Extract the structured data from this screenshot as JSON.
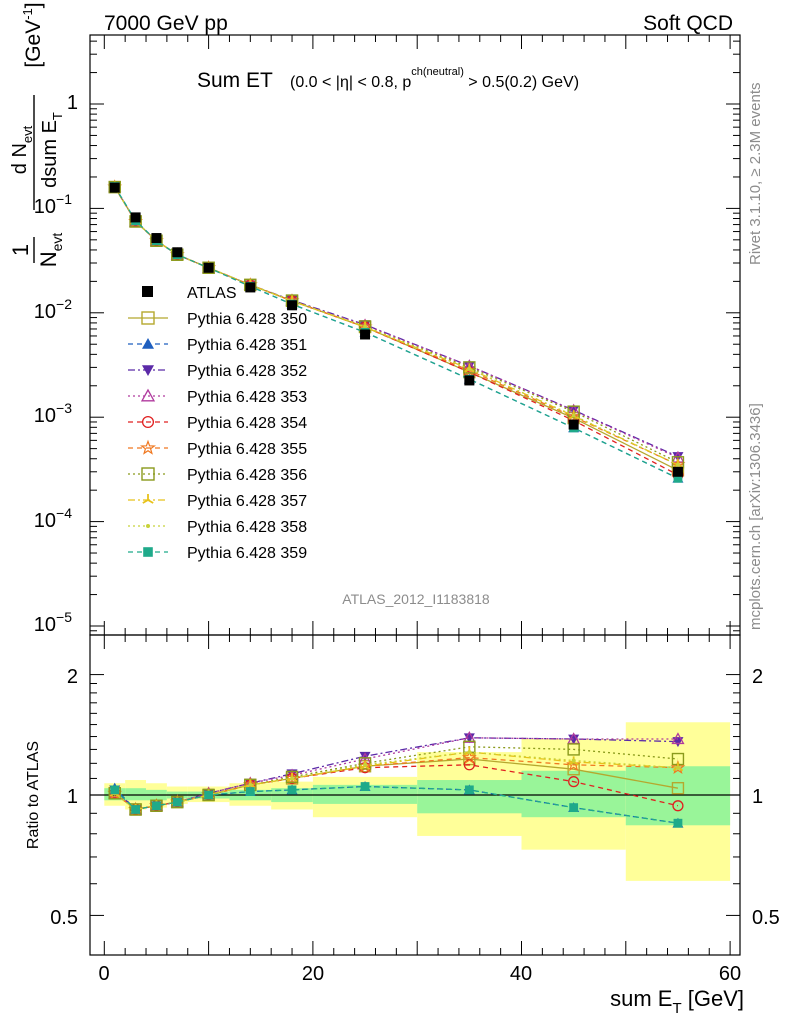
{
  "header": {
    "left": "7000 GeV pp",
    "right": "Soft QCD"
  },
  "side_text": {
    "rivet": "Rivet 3.1.10, ≥ 2.3M events",
    "mcplots": "mcplots.cern.ch [arXiv:1306.3436]"
  },
  "chart_data": [
    {
      "type": "line",
      "panel": "main",
      "title": "Sum ET",
      "subtitle": "(0.0 < |η| < 0.8, p^ch(neutral) > 0.5(0.2) GeV)",
      "ylabel": "1/N_evt dN_evt/dsum E_T [GeV^-1]",
      "watermark": "ATLAS_2012_I1183818",
      "yscale": "log",
      "ylim": [
        8e-06,
        4.5
      ],
      "xlim": [
        -1.5,
        61
      ],
      "ytick_labels": [
        "1",
        "10^-1",
        "10^-2",
        "10^-3",
        "10^-4",
        "10^-5"
      ],
      "legend_placement": "left-middle",
      "x": [
        1,
        3,
        5,
        7,
        10,
        14,
        18,
        25,
        35,
        45,
        55
      ],
      "data": {
        "name": "ATLAS",
        "values": [
          0.158,
          0.082,
          0.052,
          0.038,
          0.027,
          0.0175,
          0.0118,
          0.0062,
          0.00225,
          0.00085,
          0.0003
        ]
      },
      "series": [
        {
          "name": "Pythia 6.428 350",
          "color": "#b5a82e",
          "marker": "open-square",
          "line": "solid",
          "values": [
            0.16,
            0.075,
            0.049,
            0.036,
            0.027,
            0.0185,
            0.013,
            0.0073,
            0.0027,
            0.00098,
            0.00031
          ]
        },
        {
          "name": "Pythia 6.428 351",
          "color": "#1f5fbf",
          "marker": "triangle-up",
          "line": "dashed",
          "values": [
            0.162,
            0.076,
            0.049,
            0.036,
            0.027,
            0.0179,
            0.0121,
            0.0065,
            0.00231,
            0.00079,
            0.00026
          ]
        },
        {
          "name": "Pythia 6.428 352",
          "color": "#5b2aa8",
          "marker": "triangle-down",
          "line": "dash-dot",
          "values": [
            0.162,
            0.075,
            0.049,
            0.036,
            0.027,
            0.0185,
            0.0132,
            0.0077,
            0.0031,
            0.00117,
            0.00042
          ]
        },
        {
          "name": "Pythia 6.428 353",
          "color": "#b03a9e",
          "marker": "open-triangle-up",
          "line": "dotted",
          "values": [
            0.16,
            0.075,
            0.049,
            0.036,
            0.027,
            0.0185,
            0.0131,
            0.0076,
            0.0031,
            0.00116,
            0.00041
          ]
        },
        {
          "name": "Pythia 6.428 354",
          "color": "#e02020",
          "marker": "open-circle",
          "line": "dashed",
          "values": [
            0.16,
            0.075,
            0.049,
            0.036,
            0.027,
            0.0185,
            0.013,
            0.0073,
            0.0027,
            0.00093,
            0.00028
          ]
        },
        {
          "name": "Pythia 6.428 355",
          "color": "#f07820",
          "marker": "open-star",
          "line": "dashed",
          "values": [
            0.16,
            0.075,
            0.049,
            0.036,
            0.027,
            0.0185,
            0.013,
            0.0073,
            0.0028,
            0.00101,
            0.00035
          ]
        },
        {
          "name": "Pythia 6.428 356",
          "color": "#8a9a1c",
          "marker": "open-square",
          "line": "dotted",
          "values": [
            0.16,
            0.075,
            0.049,
            0.036,
            0.027,
            0.0185,
            0.0131,
            0.0074,
            0.003,
            0.00113,
            0.00037
          ]
        },
        {
          "name": "Pythia 6.428 357",
          "color": "#e8c21a",
          "marker": "tri-star",
          "line": "dash-dot",
          "values": [
            0.16,
            0.075,
            0.049,
            0.036,
            0.027,
            0.0185,
            0.013,
            0.0073,
            0.0029,
            0.00103,
            0.00035
          ]
        },
        {
          "name": "Pythia 6.428 358",
          "color": "#c8d23a",
          "marker": "dot",
          "line": "dotted",
          "values": [
            0.16,
            0.075,
            0.049,
            0.036,
            0.027,
            0.0185,
            0.013,
            0.0074,
            0.0029,
            0.00104,
            0.00035
          ]
        },
        {
          "name": "Pythia 6.428 359",
          "color": "#1faa8a",
          "marker": "square",
          "line": "dashed",
          "values": [
            0.162,
            0.076,
            0.049,
            0.036,
            0.027,
            0.0179,
            0.0121,
            0.0065,
            0.00231,
            0.00079,
            0.00026
          ]
        }
      ]
    },
    {
      "type": "line",
      "panel": "ratio",
      "xlabel": "sum E_T [GeV]",
      "ylabel": "Ratio to ATLAS",
      "ylim": [
        0.4,
        2.4
      ],
      "yscale": "log",
      "xlim": [
        -1.5,
        61
      ],
      "xticks": [
        0,
        20,
        40,
        60
      ],
      "yticks": [
        0.5,
        1,
        2
      ],
      "bands": {
        "edges": [
          0,
          2,
          4,
          6,
          8,
          12,
          16,
          20,
          30,
          40,
          50,
          60
        ],
        "stat_low": [
          0.97,
          0.97,
          0.97,
          0.98,
          0.98,
          0.97,
          0.96,
          0.95,
          0.9,
          0.88,
          0.84
        ],
        "stat_high": [
          1.04,
          1.04,
          1.03,
          1.02,
          1.02,
          1.03,
          1.04,
          1.06,
          1.09,
          1.15,
          1.18
        ],
        "total_low": [
          0.94,
          0.92,
          0.93,
          0.95,
          0.96,
          0.94,
          0.92,
          0.88,
          0.79,
          0.73,
          0.61
        ],
        "total_high": [
          1.07,
          1.09,
          1.07,
          1.05,
          1.05,
          1.07,
          1.08,
          1.11,
          1.28,
          1.38,
          1.52
        ]
      },
      "series": [
        {
          "name": "Pythia 6.428 350",
          "values": [
            1.01,
            0.92,
            0.94,
            0.96,
            1.0,
            1.06,
            1.1,
            1.18,
            1.23,
            1.16,
            1.04
          ]
        },
        {
          "name": "Pythia 6.428 351",
          "values": [
            1.04,
            0.92,
            0.94,
            0.96,
            1.0,
            1.02,
            1.03,
            1.05,
            1.03,
            0.93,
            0.85
          ]
        },
        {
          "name": "Pythia 6.428 352",
          "values": [
            1.03,
            0.92,
            0.94,
            0.96,
            1.01,
            1.07,
            1.13,
            1.25,
            1.39,
            1.38,
            1.36
          ]
        },
        {
          "name": "Pythia 6.428 353",
          "values": [
            1.01,
            0.92,
            0.94,
            0.96,
            1.01,
            1.07,
            1.12,
            1.23,
            1.39,
            1.38,
            1.38
          ]
        },
        {
          "name": "Pythia 6.428 354",
          "values": [
            1.01,
            0.92,
            0.94,
            0.96,
            1.0,
            1.06,
            1.1,
            1.17,
            1.19,
            1.08,
            0.94
          ]
        },
        {
          "name": "Pythia 6.428 355",
          "values": [
            1.01,
            0.92,
            0.94,
            0.96,
            1.0,
            1.06,
            1.1,
            1.18,
            1.24,
            1.19,
            1.17
          ]
        },
        {
          "name": "Pythia 6.428 356",
          "values": [
            1.01,
            0.92,
            0.94,
            0.96,
            1.0,
            1.06,
            1.11,
            1.2,
            1.32,
            1.3,
            1.23
          ]
        },
        {
          "name": "Pythia 6.428 357",
          "values": [
            1.01,
            0.92,
            0.94,
            0.96,
            1.0,
            1.06,
            1.1,
            1.18,
            1.28,
            1.21,
            1.17
          ]
        },
        {
          "name": "Pythia 6.428 358",
          "values": [
            1.01,
            0.92,
            0.94,
            0.96,
            1.0,
            1.06,
            1.1,
            1.19,
            1.28,
            1.22,
            1.17
          ]
        },
        {
          "name": "Pythia 6.428 359",
          "values": [
            1.03,
            0.92,
            0.94,
            0.96,
            1.0,
            1.02,
            1.03,
            1.05,
            1.03,
            0.93,
            0.85
          ]
        }
      ]
    }
  ]
}
